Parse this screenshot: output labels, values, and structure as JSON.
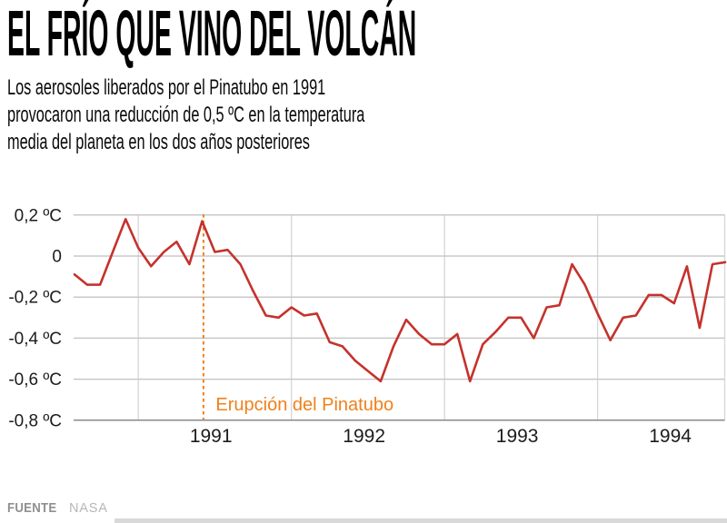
{
  "header": {
    "title": "EL FRÍO QUE VINO DEL VOLCÁN",
    "subtitle_lines": [
      "Los aerosoles liberados por el Pinatubo en 1991",
      "provocaron una reducción de 0,5 ºC en la temperatura",
      "media del planeta en los dos años posteriores"
    ]
  },
  "footer": {
    "source_label": "FUENTE",
    "source_value": "NASA"
  },
  "chart_data": {
    "type": "line",
    "unit": "ºC",
    "ylim": [
      -0.8,
      0.2
    ],
    "grid": true,
    "x": [
      "1990-08",
      "1990-09",
      "1990-10",
      "1990-11",
      "1990-12",
      "1991-01",
      "1991-02",
      "1991-03",
      "1991-04",
      "1991-05",
      "1991-06",
      "1991-07",
      "1991-08",
      "1991-09",
      "1991-10",
      "1991-11",
      "1991-12",
      "1992-01",
      "1992-02",
      "1992-03",
      "1992-04",
      "1992-05",
      "1992-06",
      "1992-07",
      "1992-08",
      "1992-09",
      "1992-10",
      "1992-11",
      "1992-12",
      "1993-01",
      "1993-02",
      "1993-03",
      "1993-04",
      "1993-05",
      "1993-06",
      "1993-07",
      "1993-08",
      "1993-09",
      "1993-10",
      "1993-11",
      "1993-12",
      "1994-01",
      "1994-02",
      "1994-03",
      "1994-04",
      "1994-05",
      "1994-06",
      "1994-07",
      "1994-08",
      "1994-09",
      "1994-10",
      "1994-11"
    ],
    "values": [
      -0.09,
      -0.14,
      -0.14,
      0.02,
      0.18,
      0.04,
      -0.05,
      0.02,
      0.07,
      -0.04,
      0.17,
      0.02,
      0.03,
      -0.04,
      -0.17,
      -0.29,
      -0.3,
      -0.25,
      -0.29,
      -0.28,
      -0.42,
      -0.44,
      -0.51,
      -0.56,
      -0.61,
      -0.44,
      -0.31,
      -0.38,
      -0.43,
      -0.43,
      -0.38,
      -0.61,
      -0.43,
      -0.37,
      -0.3,
      -0.3,
      -0.4,
      -0.25,
      -0.24,
      -0.04,
      -0.14,
      -0.28,
      -0.41,
      -0.3,
      -0.29,
      -0.19,
      -0.19,
      -0.23,
      -0.05,
      -0.35,
      -0.04,
      -0.03
    ],
    "y_ticks": [
      {
        "value": 0.2,
        "label": "0,2 ºC"
      },
      {
        "value": 0,
        "label": "0"
      },
      {
        "value": -0.2,
        "label": "-0,2 ºC"
      },
      {
        "value": -0.4,
        "label": "-0,4 ºC"
      },
      {
        "value": -0.6,
        "label": "-0,6 ºC"
      },
      {
        "value": -0.8,
        "label": "-0,8 ºC"
      }
    ],
    "x_ticks": [
      "1991",
      "1992",
      "1993",
      "1994"
    ],
    "annotation": {
      "text": "Erupción del Pinatubo",
      "x": "1991-06"
    },
    "colors": {
      "line": "#c5322c",
      "annotation": "#f0801a",
      "grid": "#c8c8c8",
      "grid_vertical": "#d6d6d6",
      "axis": "#8a8a8a",
      "tick_text": "#1c1c1c"
    }
  }
}
